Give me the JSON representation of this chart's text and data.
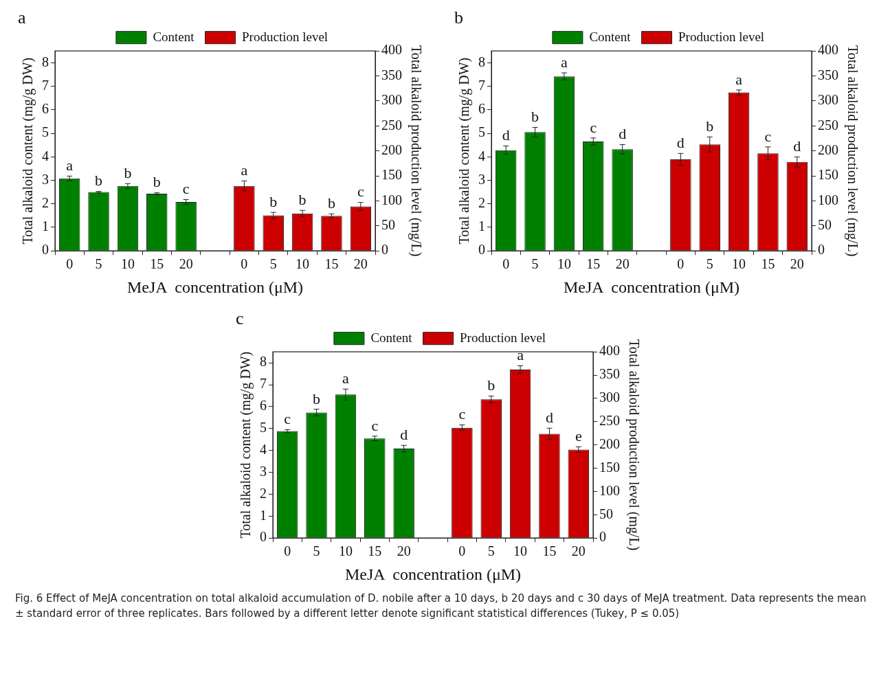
{
  "chart_data": [
    {
      "type": "bar",
      "title": "a",
      "xlabel": "MeJA  concentration (μM)",
      "ylabel": "Total alkaloid content (mg/g DW)",
      "y2label": "Total alkaloid production level (mg/L)",
      "categories": [
        "0",
        "5",
        "10",
        "15",
        "20",
        null,
        "0",
        "5",
        "10",
        "15",
        "20"
      ],
      "series": [
        {
          "name": "Content",
          "color": "#008000",
          "values": [
            3.08,
            2.5,
            2.76,
            2.43,
            2.08,
            null,
            null,
            null,
            null,
            null,
            null
          ],
          "errors": [
            0.1,
            0.03,
            0.1,
            0.04,
            0.1,
            null,
            null,
            null,
            null,
            null,
            null
          ],
          "value_labels": [
            "a",
            "b",
            "b",
            "b",
            "c",
            null,
            null,
            null,
            null,
            null,
            null
          ]
        },
        {
          "name": "Production level",
          "color": "#cc0000",
          "axis": "y2",
          "values": [
            null,
            null,
            null,
            null,
            null,
            null,
            130,
            71,
            75,
            70,
            89
          ],
          "errors": [
            null,
            null,
            null,
            null,
            null,
            null,
            10,
            6,
            6,
            4,
            8
          ],
          "value_labels": [
            null,
            null,
            null,
            null,
            null,
            null,
            "a",
            "b",
            "b",
            "b",
            "c"
          ]
        }
      ],
      "ylim": [
        0,
        8.5
      ],
      "yticks": [
        0,
        1,
        2,
        3,
        4,
        5,
        6,
        7,
        8
      ],
      "y2lim": [
        0,
        400
      ],
      "y2ticks": [
        0,
        50,
        100,
        150,
        200,
        250,
        300,
        350,
        400
      ],
      "grid": false,
      "legend": "top"
    },
    {
      "type": "bar",
      "title": "b",
      "xlabel": "MeJA  concentration (μM)",
      "ylabel": "Total alkaloid content (mg/g DW)",
      "y2label": "Total alkaloid production level (mg/L)",
      "categories": [
        "0",
        "5",
        "10",
        "15",
        "20",
        null,
        "0",
        "5",
        "10",
        "15",
        "20"
      ],
      "series": [
        {
          "name": "Content",
          "color": "#008000",
          "values": [
            4.28,
            5.05,
            7.42,
            4.65,
            4.32,
            null,
            null,
            null,
            null,
            null,
            null
          ],
          "errors": [
            0.18,
            0.2,
            0.15,
            0.15,
            0.2,
            null,
            null,
            null,
            null,
            null,
            null
          ],
          "value_labels": [
            "d",
            "b",
            "a",
            "c",
            "d",
            null,
            null,
            null,
            null,
            null,
            null
          ]
        },
        {
          "name": "Production level",
          "color": "#cc0000",
          "axis": "y2",
          "values": [
            null,
            null,
            null,
            null,
            null,
            null,
            183,
            213,
            317,
            195,
            178
          ],
          "errors": [
            null,
            null,
            null,
            null,
            null,
            null,
            12,
            15,
            5,
            13,
            10
          ],
          "value_labels": [
            null,
            null,
            null,
            null,
            null,
            null,
            "d",
            "b",
            "a",
            "c",
            "d"
          ]
        }
      ],
      "ylim": [
        0,
        8.5
      ],
      "yticks": [
        0,
        1,
        2,
        3,
        4,
        5,
        6,
        7,
        8
      ],
      "y2lim": [
        0,
        400
      ],
      "y2ticks": [
        0,
        50,
        100,
        150,
        200,
        250,
        300,
        350,
        400
      ],
      "grid": false,
      "legend": "top"
    },
    {
      "type": "bar",
      "title": "c",
      "xlabel": "MeJA  concentration (μM)",
      "ylabel": "Total alkaloid content (mg/g DW)",
      "y2label": "Total alkaloid production level (mg/L)",
      "categories": [
        "0",
        "5",
        "10",
        "15",
        "20",
        null,
        "0",
        "5",
        "10",
        "15",
        "20"
      ],
      "series": [
        {
          "name": "Content",
          "color": "#008000",
          "values": [
            4.88,
            5.73,
            6.55,
            4.55,
            4.08,
            null,
            null,
            null,
            null,
            null,
            null
          ],
          "errors": [
            0.07,
            0.15,
            0.25,
            0.1,
            0.15,
            null,
            null,
            null,
            null,
            null,
            null
          ],
          "value_labels": [
            "c",
            "b",
            "a",
            "c",
            "d",
            null,
            null,
            null,
            null,
            null,
            null
          ]
        },
        {
          "name": "Production level",
          "color": "#cc0000",
          "axis": "y2",
          "values": [
            null,
            null,
            null,
            null,
            null,
            null,
            237,
            298,
            362,
            224,
            190
          ],
          "errors": [
            null,
            null,
            null,
            null,
            null,
            null,
            6,
            7,
            8,
            12,
            6
          ],
          "value_labels": [
            null,
            null,
            null,
            null,
            null,
            null,
            "c",
            "b",
            "a",
            "d",
            "e"
          ]
        }
      ],
      "ylim": [
        0,
        8.5
      ],
      "yticks": [
        0,
        1,
        2,
        3,
        4,
        5,
        6,
        7,
        8
      ],
      "y2lim": [
        0,
        400
      ],
      "y2ticks": [
        0,
        50,
        100,
        150,
        200,
        250,
        300,
        350,
        400
      ],
      "grid": false,
      "legend": "top",
      "annotations": [
        "Fig. 6  Effect of MeJA concentration on total alkaloid accumulation of D. nobile after a 10 days, b 20 days and c 30 days of MeJA treatment. Data represents the mean ± standard error of three replicates. Bars followed by a different letter denote significant statistical differences (Tukey, P ≤ 0.05)"
      ]
    }
  ]
}
